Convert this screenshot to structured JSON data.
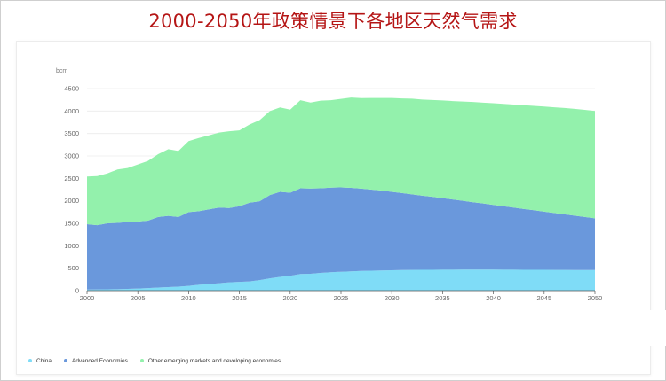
{
  "title": "2000-2050年政策情景下各地区天然气需求",
  "chart_data": {
    "type": "area",
    "stacked": true,
    "ylabel": "bcm",
    "ylim": [
      0,
      4500
    ],
    "yticks": [
      0,
      500,
      1000,
      1500,
      2000,
      2500,
      3000,
      3500,
      4000,
      4500
    ],
    "xlim": [
      2000,
      2050
    ],
    "xticks": [
      2000,
      2005,
      2010,
      2015,
      2020,
      2025,
      2030,
      2035,
      2040,
      2045,
      2050
    ],
    "grid": true,
    "legend_position": "bottom-left",
    "x": [
      2000,
      2001,
      2002,
      2003,
      2004,
      2005,
      2006,
      2007,
      2008,
      2009,
      2010,
      2011,
      2012,
      2013,
      2014,
      2015,
      2016,
      2017,
      2018,
      2019,
      2020,
      2021,
      2022,
      2023,
      2024,
      2025,
      2026,
      2027,
      2028,
      2029,
      2030,
      2031,
      2032,
      2033,
      2034,
      2035,
      2036,
      2037,
      2038,
      2039,
      2040,
      2041,
      2042,
      2043,
      2044,
      2045,
      2046,
      2047,
      2048,
      2049,
      2050
    ],
    "series": [
      {
        "name": "China",
        "color": "#7fdcf7",
        "values": [
          25,
          27,
          29,
          33,
          40,
          47,
          56,
          69,
          80,
          89,
          105,
          130,
          145,
          165,
          185,
          195,
          205,
          235,
          275,
          305,
          330,
          370,
          375,
          395,
          410,
          420,
          430,
          438,
          445,
          450,
          455,
          458,
          461,
          463,
          465,
          466,
          467,
          468,
          468,
          468,
          468,
          467,
          466,
          465,
          464,
          463,
          462,
          461,
          460,
          459,
          458
        ]
      },
      {
        "name": "Advanced Economies",
        "color": "#6a98dc",
        "values": [
          1455,
          1430,
          1471,
          1477,
          1490,
          1493,
          1504,
          1571,
          1585,
          1551,
          1645,
          1640,
          1665,
          1685,
          1655,
          1685,
          1755,
          1755,
          1855,
          1895,
          1850,
          1910,
          1900,
          1885,
          1885,
          1880,
          1860,
          1835,
          1805,
          1780,
          1745,
          1715,
          1684,
          1651,
          1625,
          1594,
          1563,
          1532,
          1502,
          1474,
          1442,
          1413,
          1384,
          1354,
          1326,
          1297,
          1268,
          1239,
          1210,
          1181,
          1152
        ]
      },
      {
        "name": "Other emerging markets and developing economies",
        "color": "#93f1ac",
        "values": [
          1060,
          1093,
          1110,
          1190,
          1200,
          1270,
          1330,
          1400,
          1485,
          1470,
          1580,
          1630,
          1650,
          1670,
          1710,
          1690,
          1740,
          1810,
          1870,
          1880,
          1850,
          1960,
          1915,
          1950,
          1945,
          1970,
          2010,
          2015,
          2040,
          2060,
          2090,
          2107,
          2130,
          2141,
          2155,
          2175,
          2192,
          2212,
          2231,
          2245,
          2265,
          2279,
          2295,
          2311,
          2325,
          2340,
          2352,
          2368,
          2378,
          2387,
          2392
        ]
      }
    ]
  }
}
